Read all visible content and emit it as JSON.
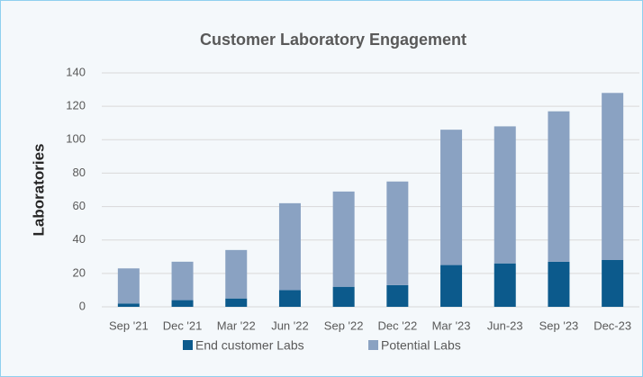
{
  "chart_data": {
    "type": "stacked_bar",
    "title": "Customer Laboratory Engagement",
    "y_label": "Laboratories",
    "categories": [
      "Sep '21",
      "Dec '21",
      "Mar '22",
      "Jun '22",
      "Sep '22",
      "Dec '22",
      "Mar '23",
      "Jun-23",
      "Sep '23",
      "Dec-23"
    ],
    "series": [
      {
        "name": "End customer Labs",
        "color": "#0c5a8c",
        "values": [
          2,
          4,
          5,
          10,
          12,
          13,
          25,
          26,
          27,
          28
        ]
      },
      {
        "name": "Potential Labs",
        "color": "#8aa2c2",
        "values": [
          21,
          23,
          29,
          52,
          57,
          62,
          81,
          82,
          90,
          100
        ]
      }
    ],
    "ylim": [
      0,
      140
    ],
    "yticks": [
      0,
      20,
      40,
      60,
      80,
      100,
      120,
      140
    ],
    "grid": true
  }
}
